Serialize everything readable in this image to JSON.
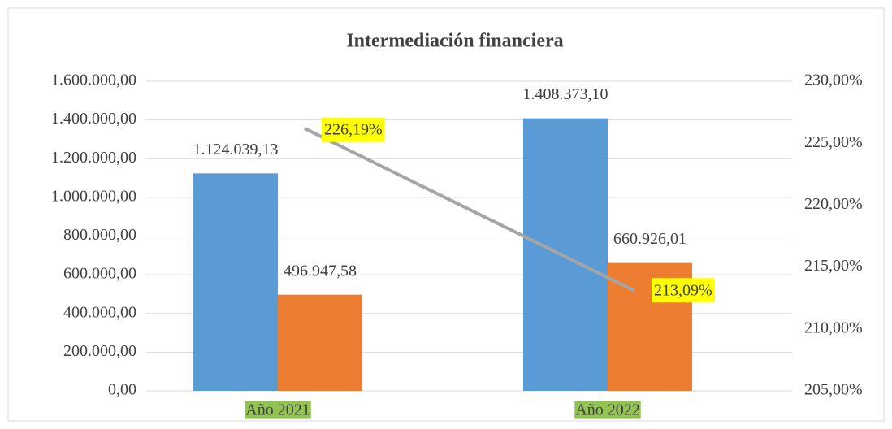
{
  "chart_data": {
    "type": "bar",
    "title": "Intermediación financiera",
    "categories": [
      "Año 2021",
      "Año 2022"
    ],
    "series": [
      {
        "color": "#5b9bd5",
        "values": [
          1124039.13,
          1408373.1
        ],
        "value_labels": [
          "1.124.039,13",
          "1.408.373,10"
        ]
      },
      {
        "color": "#ed7d31",
        "values": [
          496947.58,
          660926.01
        ],
        "value_labels": [
          "496.947,58",
          "660.926,01"
        ]
      },
      {
        "type": "line",
        "axis": "y2",
        "color": "#a5a5a5",
        "values": [
          226.19,
          213.09
        ],
        "value_labels": [
          "226,19%",
          "213,09%"
        ]
      }
    ],
    "ylim": [
      0,
      1600000
    ],
    "yticks": [
      {
        "value": 0,
        "label": "0,00"
      },
      {
        "value": 200000,
        "label": "200.000,00"
      },
      {
        "value": 400000,
        "label": "400.000,00"
      },
      {
        "value": 600000,
        "label": "600.000,00"
      },
      {
        "value": 800000,
        "label": "800.000,00"
      },
      {
        "value": 1000000,
        "label": "1.000.000,00"
      },
      {
        "value": 1200000,
        "label": "1.200.000,00"
      },
      {
        "value": 1400000,
        "label": "1.400.000,00"
      },
      {
        "value": 1600000,
        "label": "1.600.000,00"
      }
    ],
    "y2lim": [
      205,
      230
    ],
    "y2ticks": [
      {
        "value": 205,
        "label": "205,00%"
      },
      {
        "value": 210,
        "label": "210,00%"
      },
      {
        "value": 215,
        "label": "215,00%"
      },
      {
        "value": 220,
        "label": "220,00%"
      },
      {
        "value": 225,
        "label": "225,00%"
      },
      {
        "value": 230,
        "label": "230,00%"
      }
    ],
    "grid": true
  }
}
